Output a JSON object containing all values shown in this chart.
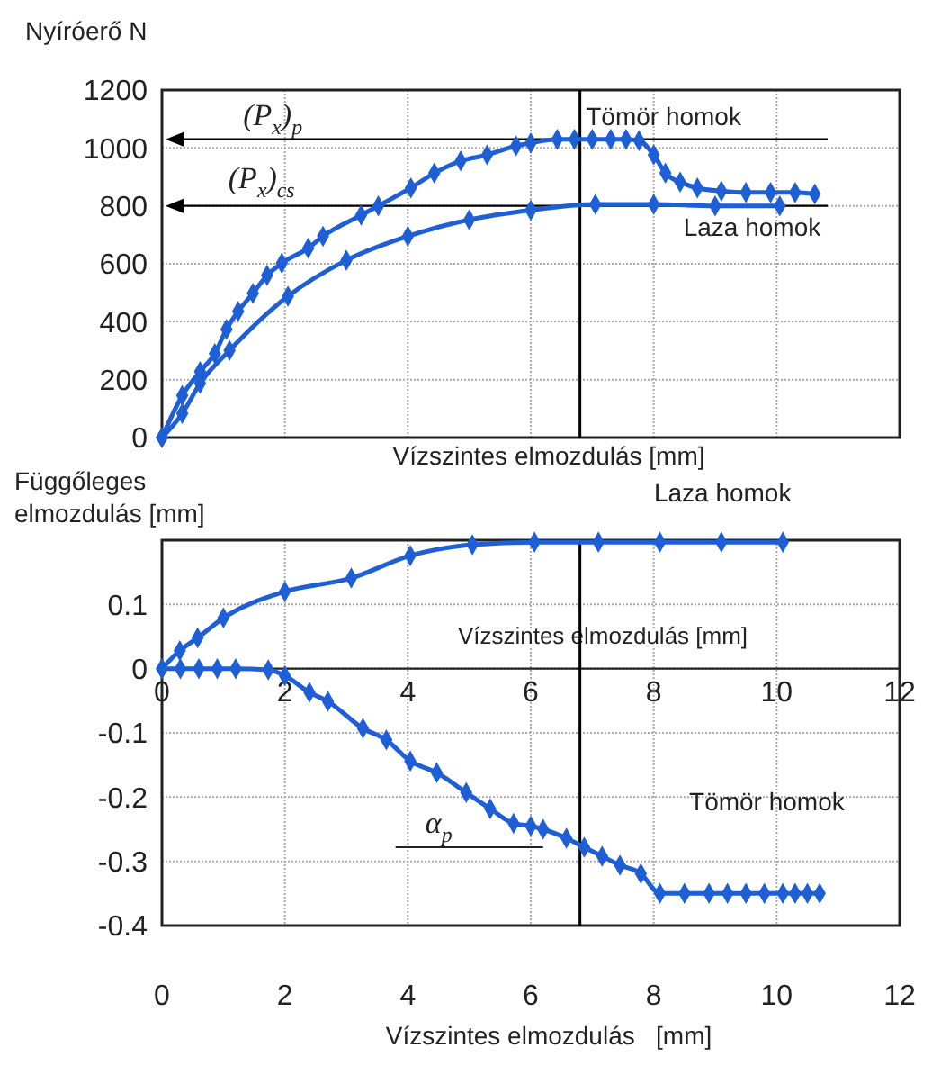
{
  "chart_data": [
    {
      "type": "line",
      "ylabel": "Nyíróerő N",
      "xlabel": "Vízszintes elmozdulás [mm]",
      "xlim": [
        0,
        12
      ],
      "xticks": [
        0,
        2,
        4,
        6,
        8,
        10,
        12
      ],
      "ylim": [
        0,
        1200
      ],
      "yticks": [
        0,
        200,
        400,
        600,
        800,
        1000,
        1200
      ],
      "tick_labels": "y",
      "grid": true,
      "marker": "diamond",
      "line_style": "solid",
      "series": [
        {
          "name": "Tömör homok",
          "color": "#1f5fd6",
          "x": [
            0,
            0.33,
            0.62,
            0.86,
            1.05,
            1.24,
            1.48,
            1.71,
            1.95,
            2.38,
            2.62,
            3.24,
            3.52,
            4.05,
            4.43,
            4.86,
            5.29,
            5.76,
            6.0,
            6.43,
            6.71,
            7.0,
            7.3,
            7.55,
            7.76,
            8.0,
            8.19,
            8.43,
            8.71,
            9.1,
            9.5,
            9.9,
            10.3,
            10.62
          ],
          "values": [
            0,
            145,
            228,
            290,
            374,
            436,
            498,
            560,
            602,
            654,
            695,
            768,
            800,
            862,
            913,
            955,
            976,
            1007,
            1017,
            1030,
            1030,
            1030,
            1030,
            1030,
            1025,
            976,
            913,
            882,
            862,
            851,
            846,
            846,
            846,
            841
          ]
        },
        {
          "name": "Laza homok",
          "color": "#1f5fd6",
          "x": [
            0,
            0.33,
            0.62,
            1.1,
            2.05,
            3.0,
            4.0,
            5.0,
            6.0,
            7.05,
            8.0,
            9.0,
            10.05
          ],
          "values": [
            0,
            83,
            187,
            301,
            488,
            612,
            695,
            752,
            785,
            805,
            805,
            800,
            800
          ]
        }
      ],
      "ref_lines": [
        {
          "axis": "y",
          "value": 1030,
          "label": "(P$_{x}$)$_{p}$",
          "color": "#000000"
        },
        {
          "axis": "y",
          "value": 800,
          "label": "(P$_{x}$)$_{cs}$",
          "color": "#000000"
        },
        {
          "axis": "x",
          "value": 6.8,
          "color": "#000000"
        }
      ]
    },
    {
      "type": "line",
      "ylabel": "Függőleges elmozdulás [mm]",
      "xlabel": "Vízszintes elmozdulás   [mm]",
      "x2label": "Vízszintes elmozdulás [mm]",
      "xlim": [
        0,
        12
      ],
      "xticks": [
        0,
        2,
        4,
        6,
        8,
        10,
        12
      ],
      "x2lim": [
        0,
        12
      ],
      "x2ticks": [
        0,
        2,
        4,
        6,
        8,
        10,
        12
      ],
      "ylim": [
        -0.4,
        0.2
      ],
      "yticks": [
        -0.4,
        -0.3,
        -0.2,
        -0.1,
        0,
        0.1
      ],
      "grid": true,
      "marker": "diamond",
      "line_style": "solid",
      "series": [
        {
          "name": "Laza homok",
          "color": "#1f5fd6",
          "x": [
            0,
            0.29,
            0.58,
            1.0,
            2.0,
            3.08,
            4.04,
            5.05,
            6.06,
            7.1,
            8.1,
            9.1,
            10.1
          ],
          "values": [
            0,
            0.028,
            0.048,
            0.079,
            0.12,
            0.141,
            0.176,
            0.193,
            0.197,
            0.197,
            0.197,
            0.197,
            0.197
          ]
        },
        {
          "name": "Tömör homok",
          "color": "#1f5fd6",
          "x": [
            0,
            0.3,
            0.6,
            0.9,
            1.2,
            1.73,
            2.0,
            2.4,
            2.7,
            3.27,
            3.65,
            4.04,
            4.47,
            4.95,
            5.34,
            5.72,
            6.0,
            6.2,
            6.58,
            6.87,
            7.16,
            7.45,
            7.79,
            8.1,
            8.5,
            8.9,
            9.2,
            9.5,
            9.8,
            10.1,
            10.3,
            10.5,
            10.7
          ],
          "values": [
            0,
            0,
            0,
            0,
            0,
            -0.002,
            -0.011,
            -0.037,
            -0.051,
            -0.093,
            -0.111,
            -0.144,
            -0.162,
            -0.193,
            -0.218,
            -0.241,
            -0.245,
            -0.25,
            -0.264,
            -0.278,
            -0.292,
            -0.306,
            -0.319,
            -0.35,
            -0.35,
            -0.35,
            -0.35,
            -0.35,
            -0.35,
            -0.35,
            -0.35,
            -0.35,
            -0.35
          ]
        }
      ],
      "ref_lines": [
        {
          "axis": "x",
          "value": 6.8,
          "color": "#000000"
        }
      ],
      "annotations": [
        {
          "text": "α$_{p}$",
          "x": 6.2,
          "y": -0.25
        }
      ]
    }
  ]
}
